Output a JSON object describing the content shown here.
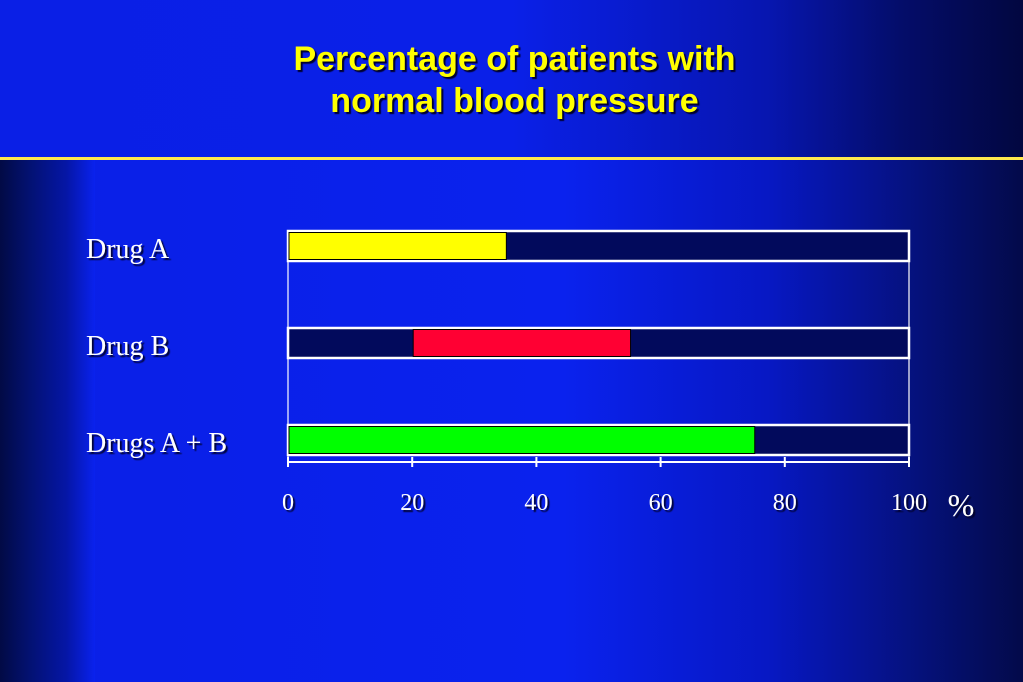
{
  "slide": {
    "title_line1": "Percentage of patients with",
    "title_line2": "normal blood pressure"
  },
  "colors": {
    "track": "#020a5c",
    "frame": "#ffffff",
    "drug_a": "#ffff00",
    "drug_b": "#ff0033",
    "drugs_ab": "#00ff00",
    "title": "#ffff00",
    "rule": "#ffe94d"
  },
  "chart_data": {
    "type": "bar",
    "orientation": "horizontal",
    "categories": [
      "Drug A",
      "Drug B",
      "Drugs A + B"
    ],
    "ranges": [
      [
        0,
        35
      ],
      [
        20,
        55
      ],
      [
        0,
        75
      ]
    ],
    "x_ticks": [
      "0",
      "20",
      "40",
      "60",
      "80",
      "100"
    ],
    "xlim": [
      0,
      100
    ],
    "x_unit": "%",
    "grid": false
  }
}
